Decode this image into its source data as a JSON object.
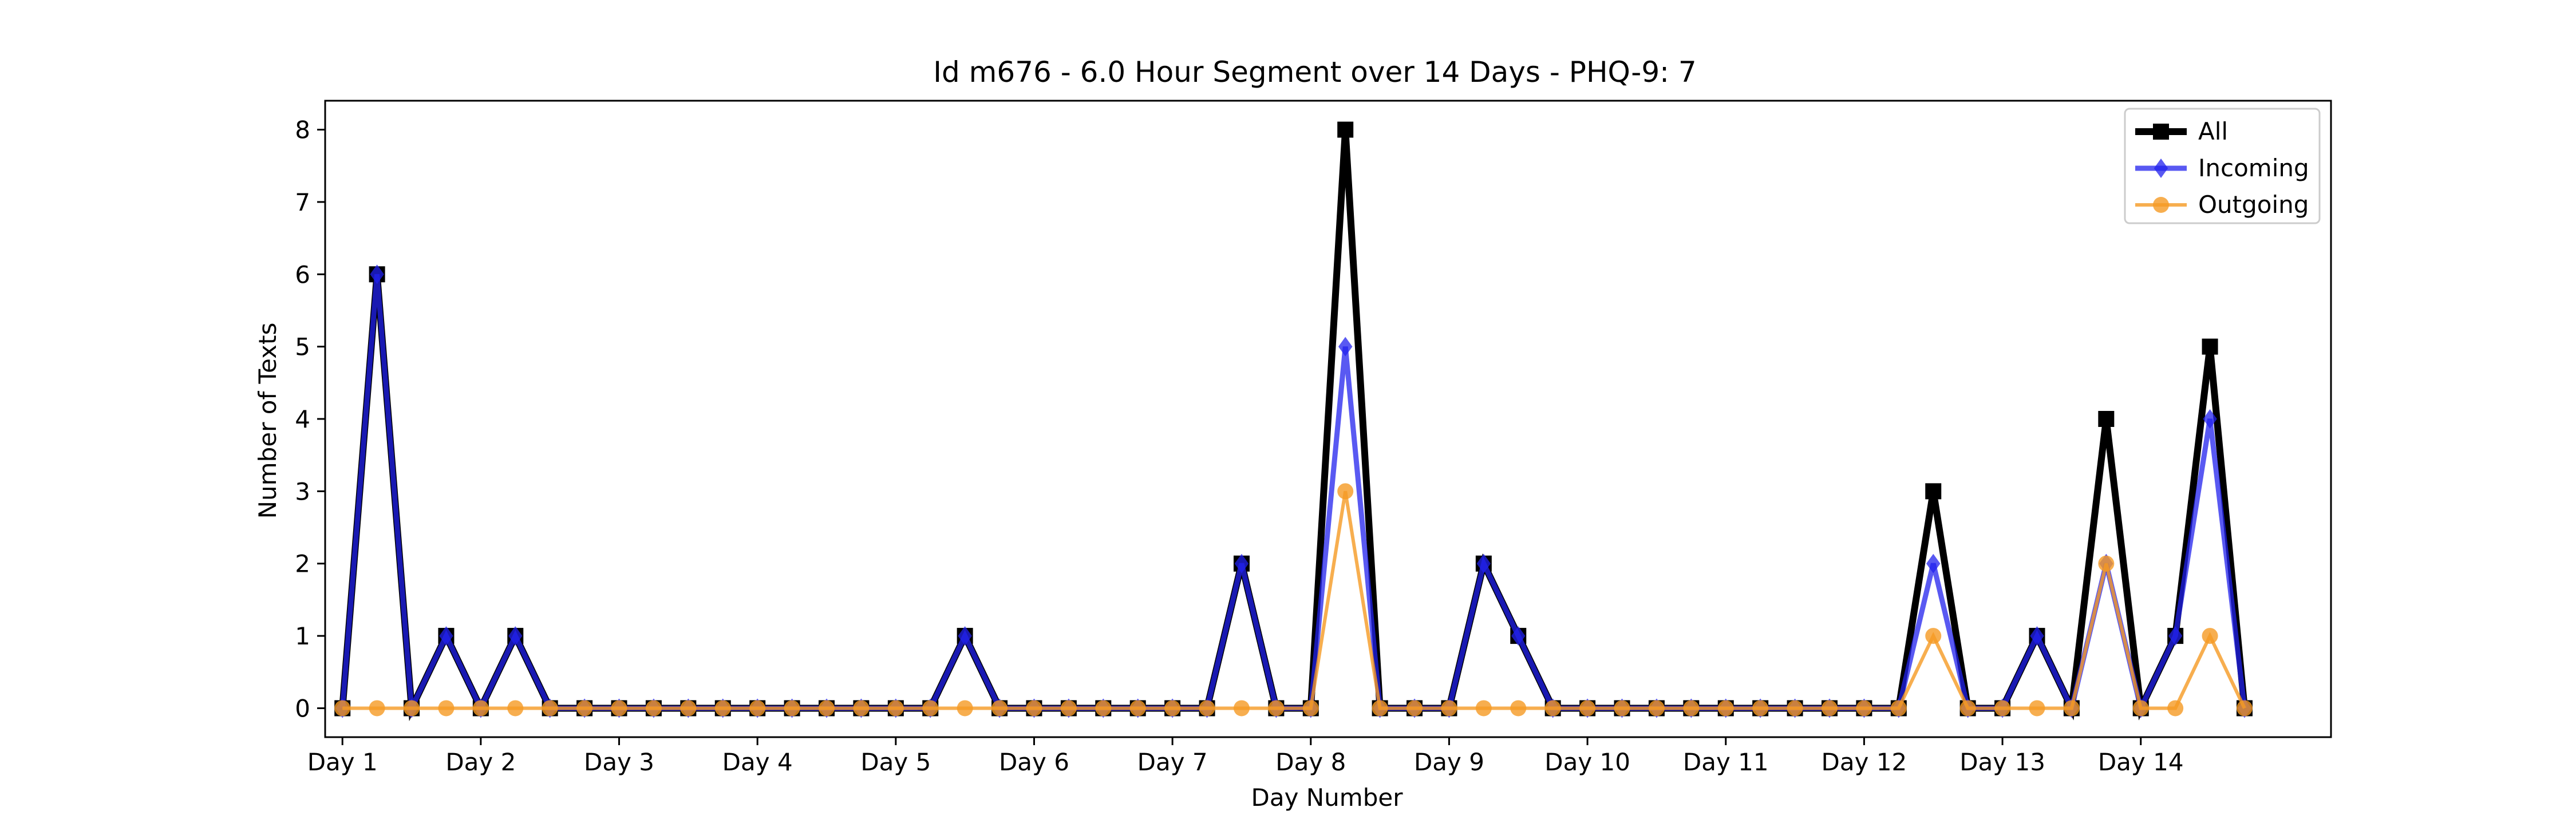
{
  "chart_data": {
    "type": "line",
    "title": "Id m676 - 6.0 Hour Segment over 14 Days - PHQ-9: 7",
    "xlabel": "Day Number",
    "ylabel": "Number of Texts",
    "xlim": [
      -0.5,
      57.5
    ],
    "ylim": [
      -0.4,
      8.4
    ],
    "y_ticks": [
      0,
      1,
      2,
      3,
      4,
      5,
      6,
      7,
      8
    ],
    "x_ticks": [
      {
        "pos": 0,
        "label": "Day 1"
      },
      {
        "pos": 4,
        "label": "Day 2"
      },
      {
        "pos": 8,
        "label": "Day 3"
      },
      {
        "pos": 12,
        "label": "Day 4"
      },
      {
        "pos": 16,
        "label": "Day 5"
      },
      {
        "pos": 20,
        "label": "Day 6"
      },
      {
        "pos": 24,
        "label": "Day 7"
      },
      {
        "pos": 28,
        "label": "Day 8"
      },
      {
        "pos": 32,
        "label": "Day 9"
      },
      {
        "pos": 36,
        "label": "Day 10"
      },
      {
        "pos": 40,
        "label": "Day 11"
      },
      {
        "pos": 44,
        "label": "Day 12"
      },
      {
        "pos": 48,
        "label": "Day 13"
      },
      {
        "pos": 52,
        "label": "Day 14"
      }
    ],
    "grid": false,
    "legend_position": "top-right",
    "series": [
      {
        "name": "All",
        "color": "#000000",
        "marker": "square",
        "values": [
          0,
          6,
          0,
          1,
          0,
          1,
          0,
          0,
          0,
          0,
          0,
          0,
          0,
          0,
          0,
          0,
          0,
          0,
          1,
          0,
          0,
          0,
          0,
          0,
          0,
          0,
          2,
          0,
          0,
          8,
          0,
          0,
          0,
          2,
          1,
          0,
          0,
          0,
          0,
          0,
          0,
          0,
          0,
          0,
          0,
          0,
          3,
          0,
          0,
          1,
          0,
          4,
          0,
          1,
          5,
          0
        ]
      },
      {
        "name": "Incoming",
        "color": "#2222ee",
        "marker": "diamond",
        "values": [
          0,
          6,
          0,
          1,
          0,
          1,
          0,
          0,
          0,
          0,
          0,
          0,
          0,
          0,
          0,
          0,
          0,
          0,
          1,
          0,
          0,
          0,
          0,
          0,
          0,
          0,
          2,
          0,
          0,
          5,
          0,
          0,
          0,
          2,
          1,
          0,
          0,
          0,
          0,
          0,
          0,
          0,
          0,
          0,
          0,
          0,
          2,
          0,
          0,
          1,
          0,
          2,
          0,
          1,
          4,
          0
        ]
      },
      {
        "name": "Outgoing",
        "color": "#f59a23",
        "marker": "circle",
        "values": [
          0,
          0,
          0,
          0,
          0,
          0,
          0,
          0,
          0,
          0,
          0,
          0,
          0,
          0,
          0,
          0,
          0,
          0,
          0,
          0,
          0,
          0,
          0,
          0,
          0,
          0,
          0,
          0,
          0,
          3,
          0,
          0,
          0,
          0,
          0,
          0,
          0,
          0,
          0,
          0,
          0,
          0,
          0,
          0,
          0,
          0,
          1,
          0,
          0,
          0,
          0,
          2,
          0,
          0,
          1,
          0
        ]
      }
    ]
  }
}
